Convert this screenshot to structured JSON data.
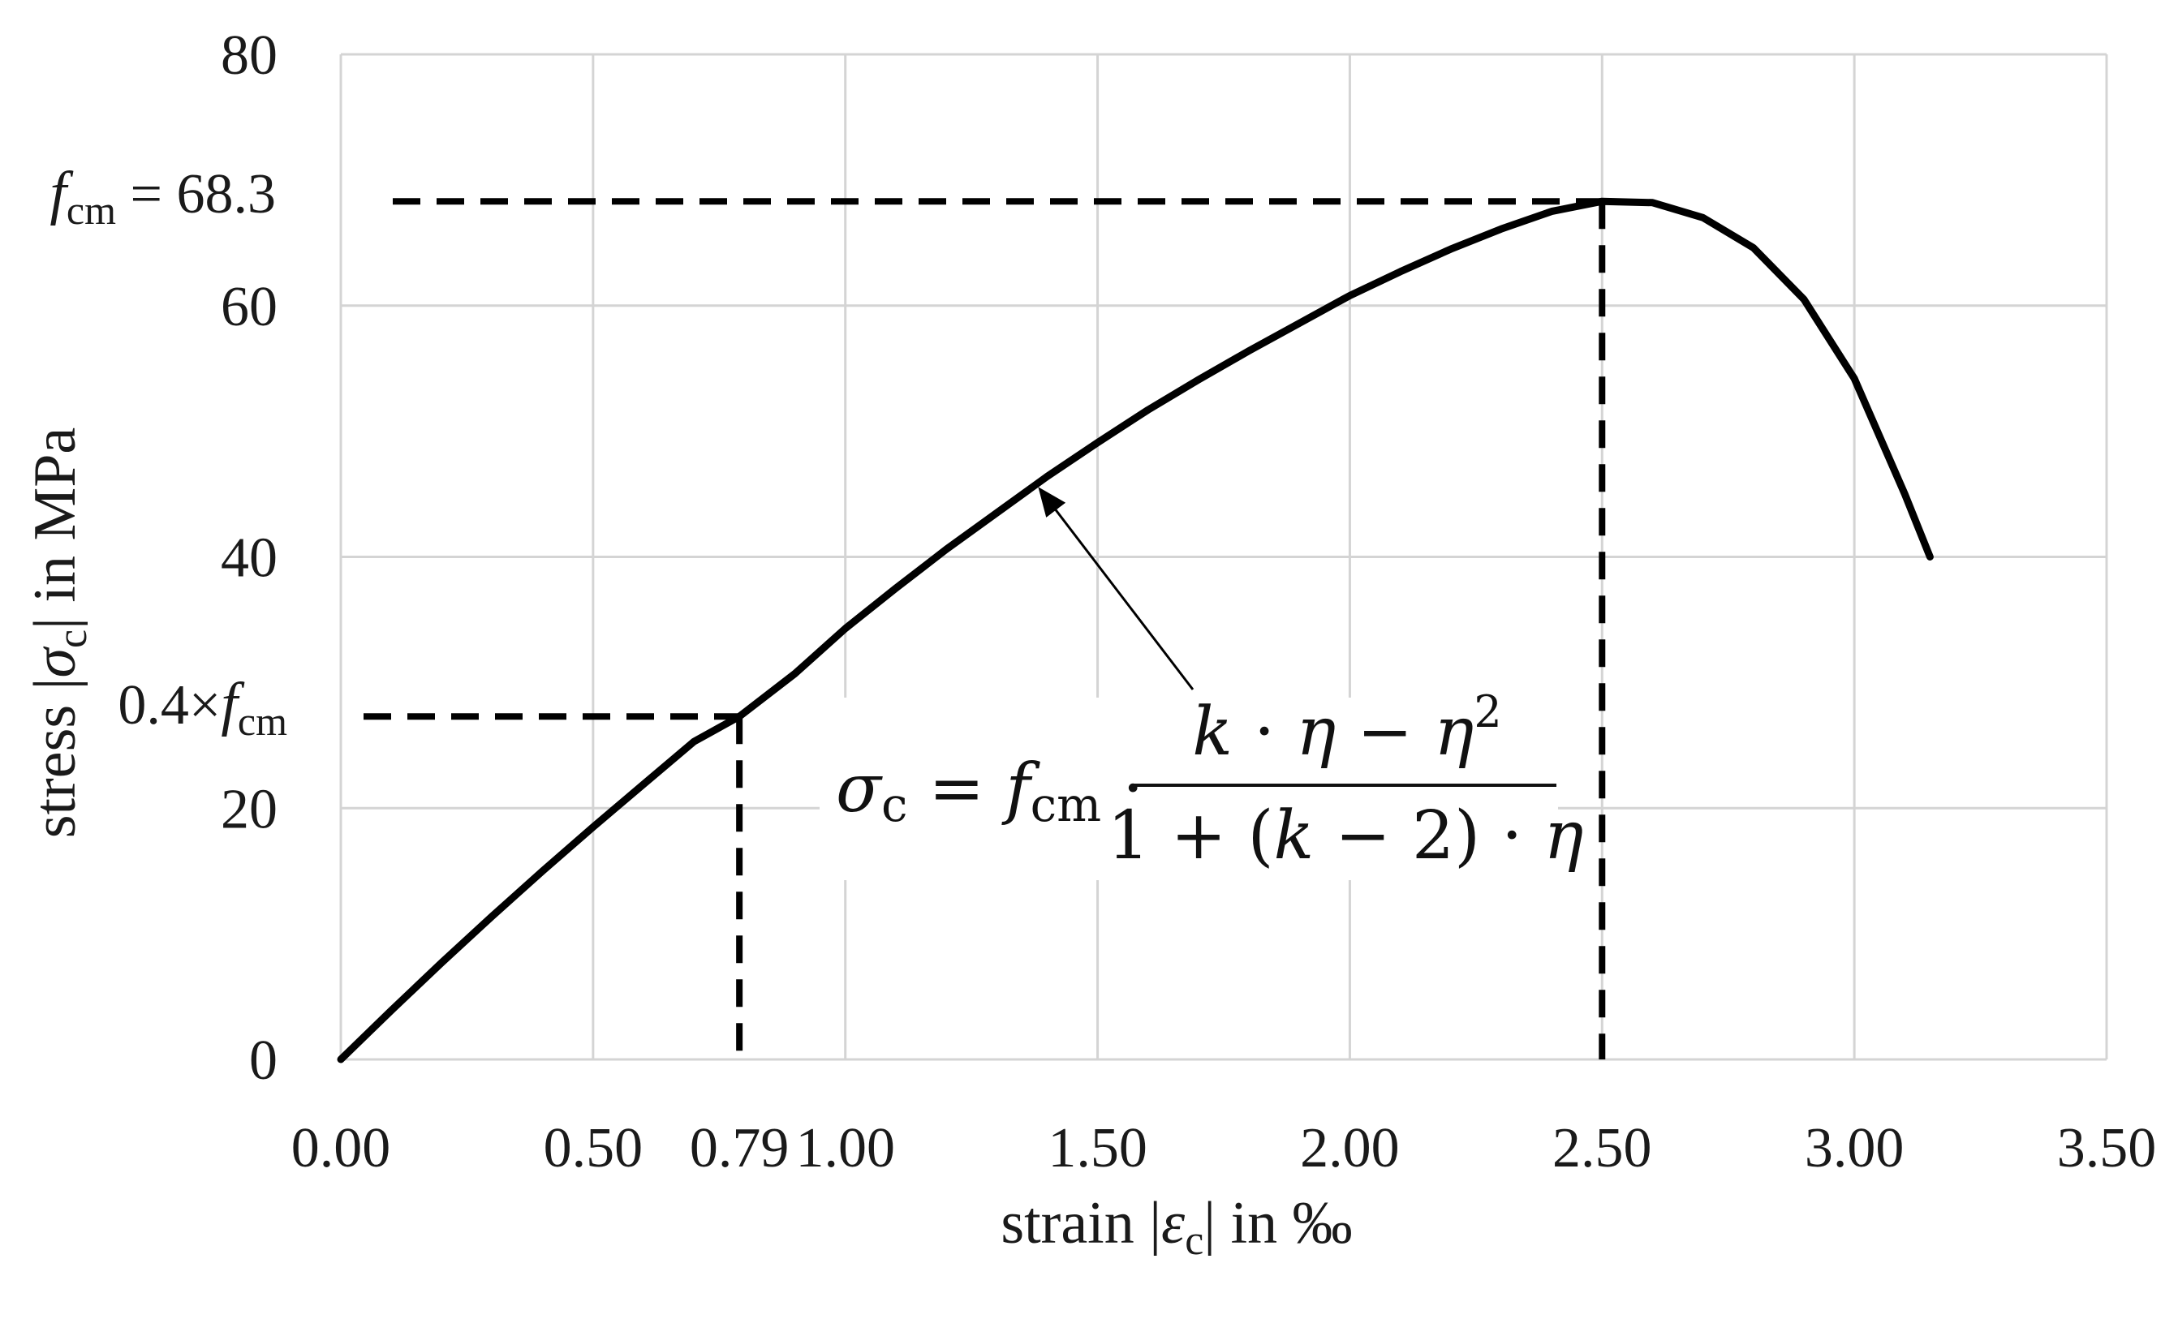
{
  "chart_data": {
    "type": "line",
    "xlabel": {
      "prefix": "strain |",
      "symbol": "ε",
      "sub": "c",
      "suffix": "| in ‰"
    },
    "ylabel": {
      "prefix": "stress |",
      "symbol": "σ",
      "sub": "c",
      "suffix": "| in MPa"
    },
    "xlim": [
      0,
      3.5
    ],
    "ylim": [
      0,
      80
    ],
    "x_ticks": [
      0,
      0.5,
      0.79,
      1.0,
      1.5,
      2.0,
      2.5,
      3.0,
      3.5
    ],
    "x_tick_labels": [
      "0.00",
      "0.50",
      "0.79",
      "1.00",
      "1.50",
      "2.00",
      "2.50",
      "3.00",
      "3.50"
    ],
    "y_ticks": [
      0,
      20,
      40,
      60,
      80
    ],
    "y_tick_labels": [
      "0",
      "20",
      "40",
      "60",
      "80"
    ],
    "x_gridlines": [
      0,
      0.5,
      1.0,
      1.5,
      2.0,
      2.5,
      3.0,
      3.5
    ],
    "y_gridlines": [
      0,
      20,
      40,
      60,
      80
    ],
    "grid": true,
    "legend": "none",
    "series": [
      {
        "color": "#000000",
        "x": [
          0,
          0.1,
          0.2,
          0.3,
          0.4,
          0.5,
          0.6,
          0.7,
          0.79,
          0.9,
          1.0,
          1.1,
          1.2,
          1.3,
          1.4,
          1.5,
          1.6,
          1.7,
          1.8,
          1.9,
          2.0,
          2.1,
          2.2,
          2.3,
          2.4,
          2.5,
          2.6,
          2.7,
          2.8,
          2.9,
          3.0,
          3.1,
          3.15
        ],
        "y": [
          0,
          3.9,
          7.7,
          11.4,
          15.0,
          18.5,
          21.9,
          25.3,
          27.3,
          30.7,
          34.3,
          37.5,
          40.6,
          43.5,
          46.4,
          49.1,
          51.7,
          54.1,
          56.4,
          58.6,
          60.8,
          62.7,
          64.5,
          66.1,
          67.5,
          68.3,
          68.2,
          67.0,
          64.6,
          60.5,
          54.2,
          45.0,
          40.0
        ]
      }
    ],
    "reference_lines": {
      "peak": {
        "x": 2.5,
        "y": 68.3
      },
      "elastic": {
        "x": 0.79,
        "y": 27.3
      }
    },
    "annotations": {
      "fcm_label": {
        "symbol": "f",
        "sub": "cm",
        "text": " = 68.3"
      },
      "elastic_label": {
        "prefix": "0.4×",
        "symbol": "f",
        "sub": "cm"
      },
      "formula": {
        "lhs_symbol": "σ",
        "lhs_sub": "c",
        "equals": " = ",
        "f_symbol": "f",
        "f_sub": "cm",
        "dot": " ·",
        "numerator": {
          "k": "k",
          "mid": " · ",
          "eta": "η",
          "minus": " − ",
          "eta2": "η",
          "exp": "2"
        },
        "denominator": {
          "pre": "1 + (",
          "k": "k",
          "post": " − 2) · ",
          "eta": "η"
        }
      }
    }
  }
}
